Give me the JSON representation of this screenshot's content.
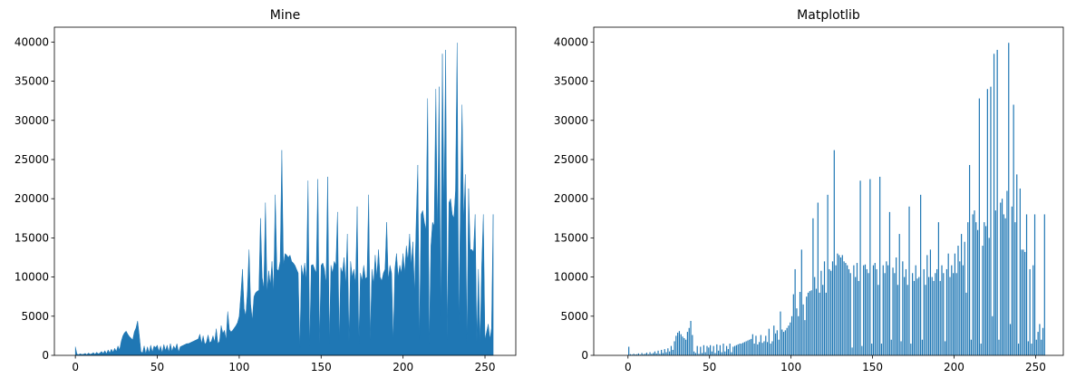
{
  "chart_data": [
    {
      "type": "area",
      "title": "Mine",
      "color": "#1f77b4",
      "x": [
        0,
        1,
        2,
        3,
        4,
        5,
        6,
        7,
        8,
        9,
        10,
        11,
        12,
        13,
        14,
        15,
        16,
        17,
        18,
        19,
        20,
        21,
        22,
        23,
        24,
        25,
        26,
        27,
        28,
        29,
        30,
        31,
        32,
        33,
        34,
        35,
        36,
        37,
        38,
        39,
        40,
        41,
        42,
        43,
        44,
        45,
        46,
        47,
        48,
        49,
        50,
        51,
        52,
        53,
        54,
        55,
        56,
        57,
        58,
        59,
        60,
        61,
        62,
        63,
        64,
        65,
        66,
        67,
        68,
        69,
        70,
        71,
        72,
        73,
        74,
        75,
        76,
        77,
        78,
        79,
        80,
        81,
        82,
        83,
        84,
        85,
        86,
        87,
        88,
        89,
        90,
        91,
        92,
        93,
        94,
        95,
        96,
        97,
        98,
        99,
        100,
        101,
        102,
        103,
        104,
        105,
        106,
        107,
        108,
        109,
        110,
        111,
        112,
        113,
        114,
        115,
        116,
        117,
        118,
        119,
        120,
        121,
        122,
        123,
        124,
        125,
        126,
        127,
        128,
        129,
        130,
        131,
        132,
        133,
        134,
        135,
        136,
        137,
        138,
        139,
        140,
        141,
        142,
        143,
        144,
        145,
        146,
        147,
        148,
        149,
        150,
        151,
        152,
        153,
        154,
        155,
        156,
        157,
        158,
        159,
        160,
        161,
        162,
        163,
        164,
        165,
        166,
        167,
        168,
        169,
        170,
        171,
        172,
        173,
        174,
        175,
        176,
        177,
        178,
        179,
        180,
        181,
        182,
        183,
        184,
        185,
        186,
        187,
        188,
        189,
        190,
        191,
        192,
        193,
        194,
        195,
        196,
        197,
        198,
        199,
        200,
        201,
        202,
        203,
        204,
        205,
        206,
        207,
        208,
        209,
        210,
        211,
        212,
        213,
        214,
        215,
        216,
        217,
        218,
        219,
        220,
        221,
        222,
        223,
        224,
        225,
        226,
        227,
        228,
        229,
        230,
        231,
        232,
        233,
        234,
        235,
        236,
        237,
        238,
        239,
        240,
        241,
        242,
        243,
        244,
        245,
        246,
        247,
        248,
        249,
        250,
        251,
        252,
        253,
        254,
        255
      ],
      "values": [
        1100,
        150,
        100,
        200,
        120,
        150,
        250,
        100,
        300,
        150,
        200,
        350,
        150,
        400,
        200,
        300,
        500,
        250,
        600,
        200,
        700,
        300,
        800,
        400,
        900,
        500,
        1200,
        700,
        1800,
        2500,
        2900,
        3100,
        2700,
        2400,
        2200,
        2000,
        3000,
        3500,
        4400,
        2600,
        500,
        300,
        1200,
        200,
        1100,
        300,
        1300,
        400,
        1200,
        1000,
        1300,
        500,
        1200,
        300,
        1400,
        600,
        1300,
        400,
        1500,
        500,
        1200,
        800,
        1500,
        400,
        1100,
        1200,
        1300,
        1400,
        1500,
        1500,
        1600,
        1700,
        1800,
        1900,
        2000,
        2100,
        2700,
        1500,
        2500,
        1400,
        1700,
        2600,
        1600,
        1800,
        2500,
        1700,
        3400,
        1500,
        1800,
        3800,
        2800,
        3200,
        2000,
        5600,
        3300,
        3000,
        3200,
        3500,
        3800,
        4200,
        5000,
        7800,
        11000,
        6000,
        5000,
        8100,
        13500,
        6500,
        4500,
        7500,
        8000,
        8200,
        8300,
        17500,
        10000,
        8500,
        19500,
        8000,
        10800,
        9000,
        12000,
        8000,
        20500,
        11000,
        10800,
        12000,
        26200,
        11500,
        13000,
        12800,
        12500,
        12800,
        12000,
        11800,
        11500,
        11000,
        10500,
        1000,
        11500,
        10000,
        11800,
        9500,
        22300,
        1200,
        11500,
        11600,
        11000,
        10500,
        22500,
        1500,
        11500,
        11800,
        11000,
        9000,
        22800,
        1500,
        11500,
        10500,
        12000,
        11500,
        18300,
        2000,
        11200,
        10500,
        12500,
        9000,
        15500,
        1800,
        12000,
        10000,
        11000,
        9000,
        19000,
        1500,
        10500,
        9500,
        11500,
        9800,
        10000,
        20500,
        2000,
        11000,
        9000,
        12800,
        10000,
        13500,
        10000,
        9500,
        10500,
        11000,
        17000,
        9500,
        11500,
        10500,
        1800,
        11000,
        13000,
        10000,
        11500,
        10500,
        13000,
        10500,
        14000,
        12000,
        15500,
        11500,
        14500,
        8000,
        17000,
        24300,
        2000,
        18000,
        18500,
        17000,
        16000,
        32800,
        1500,
        14000,
        17000,
        16500,
        34000,
        15000,
        34300,
        5000,
        38500,
        18500,
        39000,
        2000,
        19500,
        20000,
        18000,
        17500,
        21000,
        39900,
        4000,
        19000,
        32000,
        17000,
        23100,
        1500,
        21300,
        13500,
        13500,
        13200,
        18000,
        1800,
        11000,
        1500,
        11500,
        18000,
        2000,
        3000,
        4000,
        2000,
        3500,
        18000
      ],
      "xlim": [
        -12.8,
        268.8
      ],
      "xticks": [
        0,
        50,
        100,
        150,
        200,
        250
      ],
      "ylim": [
        0,
        41895
      ],
      "yticks": [
        0,
        5000,
        10000,
        15000,
        20000,
        25000,
        30000,
        35000,
        40000
      ]
    },
    {
      "type": "histogram",
      "title": "Matplotlib",
      "color": "#1f77b4",
      "bins": [
        0,
        1,
        2,
        3,
        4,
        5,
        6,
        7,
        8,
        9,
        10,
        11,
        12,
        13,
        14,
        15,
        16,
        17,
        18,
        19,
        20,
        21,
        22,
        23,
        24,
        25,
        26,
        27,
        28,
        29,
        30,
        31,
        32,
        33,
        34,
        35,
        36,
        37,
        38,
        39,
        40,
        41,
        42,
        43,
        44,
        45,
        46,
        47,
        48,
        49,
        50,
        51,
        52,
        53,
        54,
        55,
        56,
        57,
        58,
        59,
        60,
        61,
        62,
        63,
        64,
        65,
        66,
        67,
        68,
        69,
        70,
        71,
        72,
        73,
        74,
        75,
        76,
        77,
        78,
        79,
        80,
        81,
        82,
        83,
        84,
        85,
        86,
        87,
        88,
        89,
        90,
        91,
        92,
        93,
        94,
        95,
        96,
        97,
        98,
        99,
        100,
        101,
        102,
        103,
        104,
        105,
        106,
        107,
        108,
        109,
        110,
        111,
        112,
        113,
        114,
        115,
        116,
        117,
        118,
        119,
        120,
        121,
        122,
        123,
        124,
        125,
        126,
        127,
        128,
        129,
        130,
        131,
        132,
        133,
        134,
        135,
        136,
        137,
        138,
        139,
        140,
        141,
        142,
        143,
        144,
        145,
        146,
        147,
        148,
        149,
        150,
        151,
        152,
        153,
        154,
        155,
        156,
        157,
        158,
        159,
        160,
        161,
        162,
        163,
        164,
        165,
        166,
        167,
        168,
        169,
        170,
        171,
        172,
        173,
        174,
        175,
        176,
        177,
        178,
        179,
        180,
        181,
        182,
        183,
        184,
        185,
        186,
        187,
        188,
        189,
        190,
        191,
        192,
        193,
        194,
        195,
        196,
        197,
        198,
        199,
        200,
        201,
        202,
        203,
        204,
        205,
        206,
        207,
        208,
        209,
        210,
        211,
        212,
        213,
        214,
        215,
        216,
        217,
        218,
        219,
        220,
        221,
        222,
        223,
        224,
        225,
        226,
        227,
        228,
        229,
        230,
        231,
        232,
        233,
        234,
        235,
        236,
        237,
        238,
        239,
        240,
        241,
        242,
        243,
        244,
        245,
        246,
        247,
        248,
        249,
        250,
        251,
        252,
        253,
        254,
        255,
        256
      ],
      "values": [
        1100,
        150,
        100,
        200,
        120,
        150,
        250,
        100,
        300,
        150,
        200,
        350,
        150,
        400,
        200,
        300,
        500,
        250,
        600,
        200,
        700,
        300,
        800,
        400,
        900,
        500,
        1200,
        700,
        1800,
        2500,
        2900,
        3100,
        2700,
        2400,
        2200,
        2000,
        3000,
        3500,
        4400,
        2600,
        500,
        300,
        1200,
        200,
        1100,
        300,
        1300,
        400,
        1200,
        1000,
        1300,
        500,
        1200,
        300,
        1400,
        600,
        1300,
        400,
        1500,
        500,
        1200,
        800,
        1500,
        400,
        1100,
        1200,
        1300,
        1400,
        1500,
        1500,
        1600,
        1700,
        1800,
        1900,
        2000,
        2100,
        2700,
        1500,
        2500,
        1400,
        1700,
        2600,
        1600,
        1800,
        2500,
        1700,
        3400,
        1500,
        1800,
        3800,
        2800,
        3200,
        2000,
        5600,
        3300,
        3000,
        3200,
        3500,
        3800,
        4200,
        5000,
        7800,
        11000,
        6000,
        5000,
        8100,
        13500,
        6500,
        4500,
        7500,
        8000,
        8200,
        8300,
        17500,
        10000,
        8500,
        19500,
        8000,
        10800,
        9000,
        12000,
        8000,
        20500,
        11000,
        10800,
        12000,
        26200,
        11500,
        13000,
        12800,
        12500,
        12800,
        12000,
        11800,
        11500,
        11000,
        10500,
        1000,
        11500,
        10000,
        11800,
        9500,
        22300,
        1200,
        11500,
        11600,
        11000,
        10500,
        22500,
        1500,
        11500,
        11800,
        11000,
        9000,
        22800,
        1500,
        11500,
        10500,
        12000,
        11500,
        18300,
        2000,
        11200,
        10500,
        12500,
        9000,
        15500,
        1800,
        12000,
        10000,
        11000,
        9000,
        19000,
        1500,
        10500,
        9500,
        11500,
        9800,
        10000,
        20500,
        2000,
        11000,
        9000,
        12800,
        10000,
        13500,
        10000,
        9500,
        10500,
        11000,
        17000,
        9500,
        11500,
        10500,
        1800,
        11000,
        13000,
        10000,
        11500,
        10500,
        13000,
        10500,
        14000,
        12000,
        15500,
        11500,
        14500,
        8000,
        17000,
        24300,
        2000,
        18000,
        18500,
        17000,
        16000,
        32800,
        1500,
        14000,
        17000,
        16500,
        34000,
        15000,
        34300,
        5000,
        38500,
        18500,
        39000,
        2000,
        19500,
        20000,
        18000,
        17500,
        21000,
        39900,
        4000,
        19000,
        32000,
        17000,
        23100,
        1500,
        21300,
        13500,
        13500,
        13200,
        18000,
        1800,
        11000,
        1500,
        11500,
        18000,
        2000,
        3000,
        4000,
        2000,
        3500,
        18000
      ],
      "xlim": [
        -21,
        267
      ],
      "xticks": [
        0,
        50,
        100,
        150,
        200,
        250
      ],
      "ylim": [
        0,
        41895
      ],
      "yticks": [
        0,
        5000,
        10000,
        15000,
        20000,
        25000,
        30000,
        35000,
        40000
      ]
    }
  ]
}
